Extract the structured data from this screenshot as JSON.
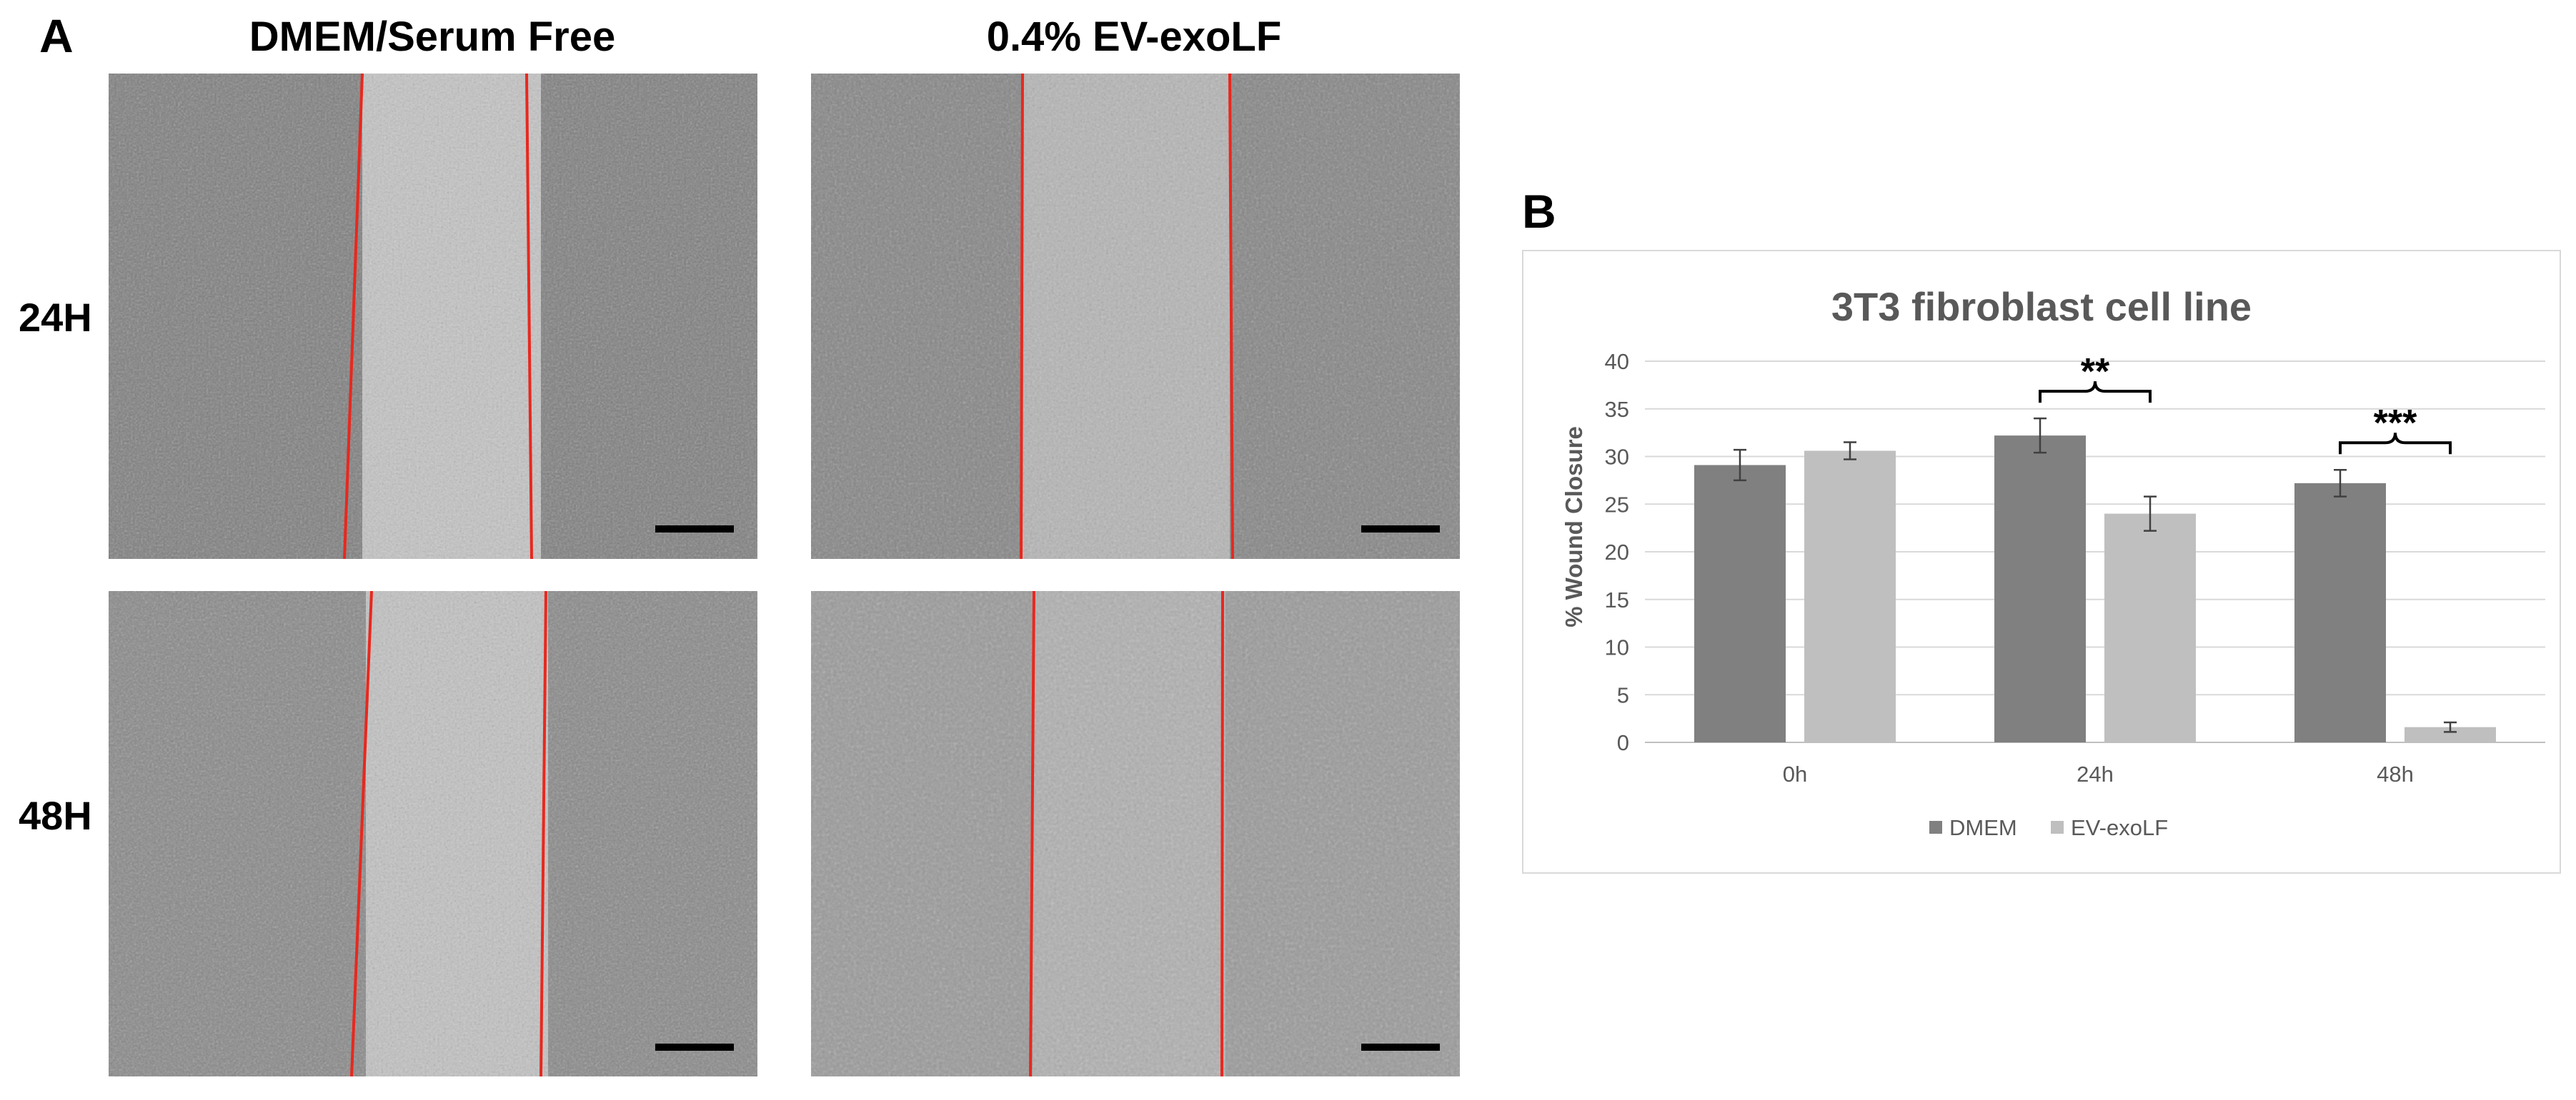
{
  "panel_a": {
    "letter": "A",
    "columns": [
      "DMEM/Serum Free",
      "0.4% EV-exoLF"
    ],
    "rows": [
      "24H",
      "48H"
    ]
  },
  "panel_b": {
    "letter": "B"
  },
  "colors": {
    "dmem": "#808080",
    "ev_exolf": "#bfbfbf",
    "wound_line": "#e8281e",
    "grid": "#d9d9d9"
  },
  "chart_data": {
    "type": "bar",
    "title": "3T3 fibroblast cell line",
    "xlabel": "",
    "ylabel": "% Wound Closure",
    "ylim": [
      0,
      40
    ],
    "yticks": [
      0,
      5,
      10,
      15,
      20,
      25,
      30,
      35,
      40
    ],
    "categories": [
      "0h",
      "24h",
      "48h"
    ],
    "series": [
      {
        "name": "DMEM",
        "values": [
          29.1,
          32.2,
          27.2
        ],
        "errors": [
          1.6,
          1.8,
          1.4
        ]
      },
      {
        "name": "EV-exoLF",
        "values": [
          30.6,
          24.0,
          1.6
        ],
        "errors": [
          0.9,
          1.8,
          0.5
        ]
      }
    ],
    "annotations": [
      {
        "category": "24h",
        "text": "**"
      },
      {
        "category": "48h",
        "text": "***"
      }
    ],
    "grid": true,
    "legend": "bottom"
  }
}
